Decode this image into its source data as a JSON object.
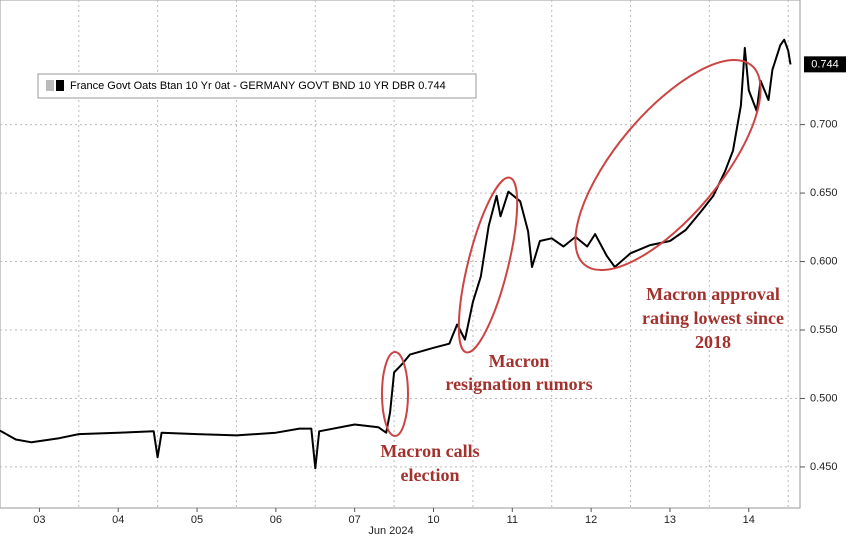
{
  "chart_data": {
    "type": "line",
    "legend_label": "France Govt Oats Btan 10 Yr 0at - GERMANY GOVT BND 10 YR DBR 0.744",
    "last_value": 0.744,
    "x_axis_sublabel": "Jun 2024",
    "annotations": [
      "Macron calls",
      "election",
      "Macron",
      "resignation rumors",
      "Macron approval",
      "rating lowest since",
      "2018"
    ],
    "xlim": [
      -0.5,
      9.65
    ],
    "xticks": [
      {
        "value": 0,
        "label": "03"
      },
      {
        "value": 1,
        "label": "04"
      },
      {
        "value": 2,
        "label": "05"
      },
      {
        "value": 3,
        "label": "06"
      },
      {
        "value": 4,
        "label": "07"
      },
      {
        "value": 5,
        "label": "10"
      },
      {
        "value": 6,
        "label": "11"
      },
      {
        "value": 7,
        "label": "12"
      },
      {
        "value": 8,
        "label": "13"
      },
      {
        "value": 9,
        "label": "14"
      }
    ],
    "ylim": [
      0.42,
      0.791
    ],
    "yticks": [
      {
        "value": 0.45,
        "label": "0.450"
      },
      {
        "value": 0.5,
        "label": "0.500"
      },
      {
        "value": 0.55,
        "label": "0.550"
      },
      {
        "value": 0.6,
        "label": "0.600"
      },
      {
        "value": 0.65,
        "label": "0.650"
      },
      {
        "value": 0.7,
        "label": "0.700"
      }
    ],
    "grid": true,
    "series": [
      {
        "color": "#000000",
        "x": [
          -0.5,
          -0.3,
          -0.1,
          0.25,
          0.5,
          1.0,
          1.45,
          1.5,
          1.55,
          2.0,
          2.5,
          3.0,
          3.3,
          3.45,
          3.5,
          3.55,
          4.0,
          4.3,
          4.4,
          4.45,
          4.5,
          4.6,
          4.7,
          5.0,
          5.2,
          5.3,
          5.4,
          5.5,
          5.6,
          5.7,
          5.8,
          5.85,
          5.95,
          6.1,
          6.2,
          6.25,
          6.35,
          6.5,
          6.65,
          6.8,
          6.95,
          7.05,
          7.2,
          7.3,
          7.5,
          7.75,
          8.0,
          8.2,
          8.4,
          8.55,
          8.7,
          8.8,
          8.9,
          8.95,
          9.0,
          9.1,
          9.15,
          9.25,
          9.3,
          9.4,
          9.45,
          9.5,
          9.53
        ],
        "values": [
          0.4765,
          0.47,
          0.468,
          0.471,
          0.474,
          0.475,
          0.476,
          0.457,
          0.475,
          0.474,
          0.473,
          0.475,
          0.478,
          0.478,
          0.449,
          0.476,
          0.481,
          0.479,
          0.475,
          0.49,
          0.519,
          0.525,
          0.532,
          0.537,
          0.54,
          0.554,
          0.543,
          0.5705,
          0.589,
          0.626,
          0.648,
          0.633,
          0.651,
          0.644,
          0.622,
          0.596,
          0.615,
          0.617,
          0.611,
          0.618,
          0.611,
          0.62,
          0.604,
          0.596,
          0.606,
          0.612,
          0.615,
          0.623,
          0.637,
          0.648,
          0.666,
          0.681,
          0.714,
          0.756,
          0.725,
          0.71,
          0.732,
          0.718,
          0.74,
          0.758,
          0.762,
          0.754,
          0.744
        ]
      }
    ]
  }
}
